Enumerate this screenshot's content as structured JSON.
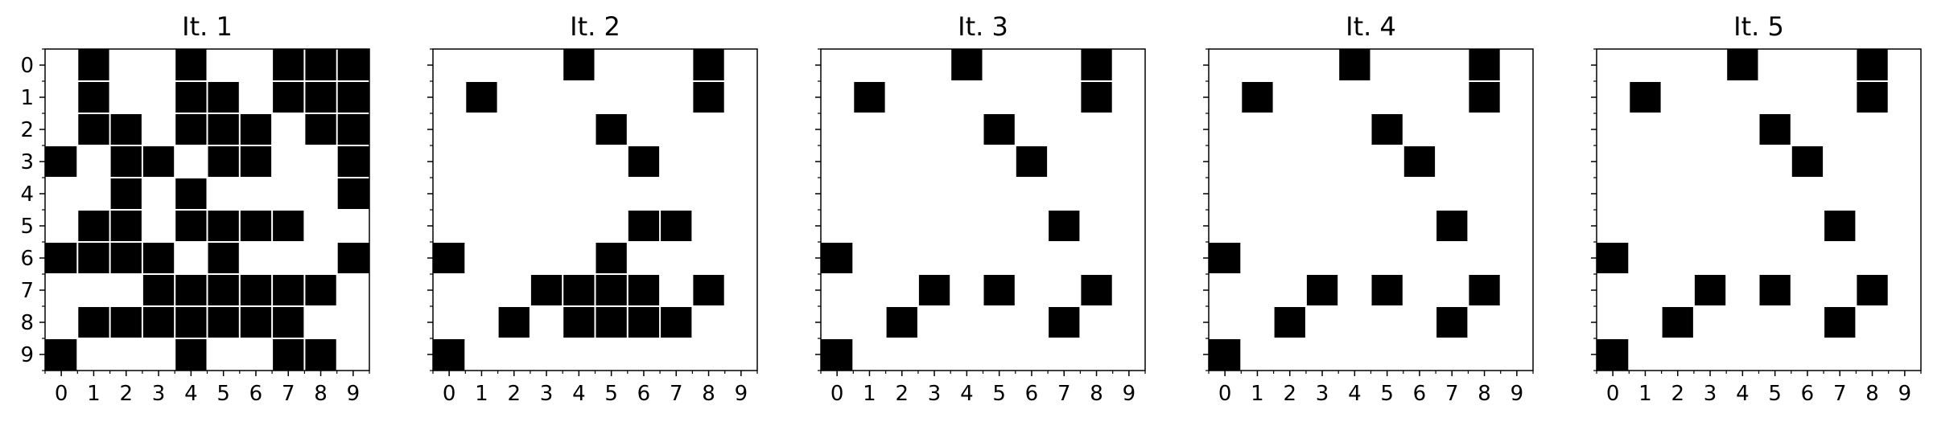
{
  "chart_data": [
    {
      "type": "heatmap",
      "title": "It. 1",
      "x_ticks": [
        "0",
        "1",
        "2",
        "3",
        "4",
        "5",
        "6",
        "7",
        "8",
        "9"
      ],
      "y_ticks": [
        "0",
        "1",
        "2",
        "3",
        "4",
        "5",
        "6",
        "7",
        "8",
        "9"
      ],
      "show_y_tick_labels": true,
      "colors": {
        "filled": "#000000",
        "empty": "#ffffff",
        "grid": "#ffffff"
      },
      "grid": [
        [
          0,
          1,
          0,
          0,
          1,
          0,
          0,
          1,
          1,
          1
        ],
        [
          0,
          1,
          0,
          0,
          1,
          1,
          0,
          1,
          1,
          1
        ],
        [
          0,
          1,
          1,
          0,
          1,
          1,
          1,
          0,
          1,
          1
        ],
        [
          1,
          0,
          1,
          1,
          0,
          1,
          1,
          0,
          0,
          1
        ],
        [
          0,
          0,
          1,
          0,
          1,
          0,
          0,
          0,
          0,
          1
        ],
        [
          0,
          1,
          1,
          0,
          1,
          1,
          1,
          1,
          0,
          0
        ],
        [
          1,
          1,
          1,
          1,
          0,
          1,
          0,
          0,
          0,
          1
        ],
        [
          0,
          0,
          0,
          1,
          1,
          1,
          1,
          1,
          1,
          0
        ],
        [
          0,
          1,
          1,
          1,
          1,
          1,
          1,
          1,
          0,
          0
        ],
        [
          1,
          0,
          0,
          0,
          1,
          0,
          0,
          1,
          1,
          0
        ]
      ]
    },
    {
      "type": "heatmap",
      "title": "It. 2",
      "x_ticks": [
        "0",
        "1",
        "2",
        "3",
        "4",
        "5",
        "6",
        "7",
        "8",
        "9"
      ],
      "y_ticks": [
        "0",
        "1",
        "2",
        "3",
        "4",
        "5",
        "6",
        "7",
        "8",
        "9"
      ],
      "show_y_tick_labels": false,
      "colors": {
        "filled": "#000000",
        "empty": "#ffffff",
        "grid": "#ffffff"
      },
      "grid": [
        [
          0,
          0,
          0,
          0,
          1,
          0,
          0,
          0,
          1,
          0
        ],
        [
          0,
          1,
          0,
          0,
          0,
          0,
          0,
          0,
          1,
          0
        ],
        [
          0,
          0,
          0,
          0,
          0,
          1,
          0,
          0,
          0,
          0
        ],
        [
          0,
          0,
          0,
          0,
          0,
          0,
          1,
          0,
          0,
          0
        ],
        [
          0,
          0,
          0,
          0,
          0,
          0,
          0,
          0,
          0,
          0
        ],
        [
          0,
          0,
          0,
          0,
          0,
          0,
          1,
          1,
          0,
          0
        ],
        [
          1,
          0,
          0,
          0,
          0,
          1,
          0,
          0,
          0,
          0
        ],
        [
          0,
          0,
          0,
          1,
          1,
          1,
          1,
          0,
          1,
          0
        ],
        [
          0,
          0,
          1,
          0,
          1,
          1,
          1,
          1,
          0,
          0
        ],
        [
          1,
          0,
          0,
          0,
          0,
          0,
          0,
          0,
          0,
          0
        ]
      ]
    },
    {
      "type": "heatmap",
      "title": "It. 3",
      "x_ticks": [
        "0",
        "1",
        "2",
        "3",
        "4",
        "5",
        "6",
        "7",
        "8",
        "9"
      ],
      "y_ticks": [
        "0",
        "1",
        "2",
        "3",
        "4",
        "5",
        "6",
        "7",
        "8",
        "9"
      ],
      "show_y_tick_labels": false,
      "colors": {
        "filled": "#000000",
        "empty": "#ffffff",
        "grid": "#ffffff"
      },
      "grid": [
        [
          0,
          0,
          0,
          0,
          1,
          0,
          0,
          0,
          1,
          0
        ],
        [
          0,
          1,
          0,
          0,
          0,
          0,
          0,
          0,
          1,
          0
        ],
        [
          0,
          0,
          0,
          0,
          0,
          1,
          0,
          0,
          0,
          0
        ],
        [
          0,
          0,
          0,
          0,
          0,
          0,
          1,
          0,
          0,
          0
        ],
        [
          0,
          0,
          0,
          0,
          0,
          0,
          0,
          0,
          0,
          0
        ],
        [
          0,
          0,
          0,
          0,
          0,
          0,
          0,
          1,
          0,
          0
        ],
        [
          1,
          0,
          0,
          0,
          0,
          0,
          0,
          0,
          0,
          0
        ],
        [
          0,
          0,
          0,
          1,
          0,
          1,
          0,
          0,
          1,
          0
        ],
        [
          0,
          0,
          1,
          0,
          0,
          0,
          0,
          1,
          0,
          0
        ],
        [
          1,
          0,
          0,
          0,
          0,
          0,
          0,
          0,
          0,
          0
        ]
      ]
    },
    {
      "type": "heatmap",
      "title": "It. 4",
      "x_ticks": [
        "0",
        "1",
        "2",
        "3",
        "4",
        "5",
        "6",
        "7",
        "8",
        "9"
      ],
      "y_ticks": [
        "0",
        "1",
        "2",
        "3",
        "4",
        "5",
        "6",
        "7",
        "8",
        "9"
      ],
      "show_y_tick_labels": false,
      "colors": {
        "filled": "#000000",
        "empty": "#ffffff",
        "grid": "#ffffff"
      },
      "grid": [
        [
          0,
          0,
          0,
          0,
          1,
          0,
          0,
          0,
          1,
          0
        ],
        [
          0,
          1,
          0,
          0,
          0,
          0,
          0,
          0,
          1,
          0
        ],
        [
          0,
          0,
          0,
          0,
          0,
          1,
          0,
          0,
          0,
          0
        ],
        [
          0,
          0,
          0,
          0,
          0,
          0,
          1,
          0,
          0,
          0
        ],
        [
          0,
          0,
          0,
          0,
          0,
          0,
          0,
          0,
          0,
          0
        ],
        [
          0,
          0,
          0,
          0,
          0,
          0,
          0,
          1,
          0,
          0
        ],
        [
          1,
          0,
          0,
          0,
          0,
          0,
          0,
          0,
          0,
          0
        ],
        [
          0,
          0,
          0,
          1,
          0,
          1,
          0,
          0,
          1,
          0
        ],
        [
          0,
          0,
          1,
          0,
          0,
          0,
          0,
          1,
          0,
          0
        ],
        [
          1,
          0,
          0,
          0,
          0,
          0,
          0,
          0,
          0,
          0
        ]
      ]
    },
    {
      "type": "heatmap",
      "title": "It. 5",
      "x_ticks": [
        "0",
        "1",
        "2",
        "3",
        "4",
        "5",
        "6",
        "7",
        "8",
        "9"
      ],
      "y_ticks": [
        "0",
        "1",
        "2",
        "3",
        "4",
        "5",
        "6",
        "7",
        "8",
        "9"
      ],
      "show_y_tick_labels": false,
      "colors": {
        "filled": "#000000",
        "empty": "#ffffff",
        "grid": "#ffffff"
      },
      "grid": [
        [
          0,
          0,
          0,
          0,
          1,
          0,
          0,
          0,
          1,
          0
        ],
        [
          0,
          1,
          0,
          0,
          0,
          0,
          0,
          0,
          1,
          0
        ],
        [
          0,
          0,
          0,
          0,
          0,
          1,
          0,
          0,
          0,
          0
        ],
        [
          0,
          0,
          0,
          0,
          0,
          0,
          1,
          0,
          0,
          0
        ],
        [
          0,
          0,
          0,
          0,
          0,
          0,
          0,
          0,
          0,
          0
        ],
        [
          0,
          0,
          0,
          0,
          0,
          0,
          0,
          1,
          0,
          0
        ],
        [
          1,
          0,
          0,
          0,
          0,
          0,
          0,
          0,
          0,
          0
        ],
        [
          0,
          0,
          0,
          1,
          0,
          1,
          0,
          0,
          1,
          0
        ],
        [
          0,
          0,
          1,
          0,
          0,
          0,
          0,
          1,
          0,
          0
        ],
        [
          1,
          0,
          0,
          0,
          0,
          0,
          0,
          0,
          0,
          0
        ]
      ]
    }
  ]
}
